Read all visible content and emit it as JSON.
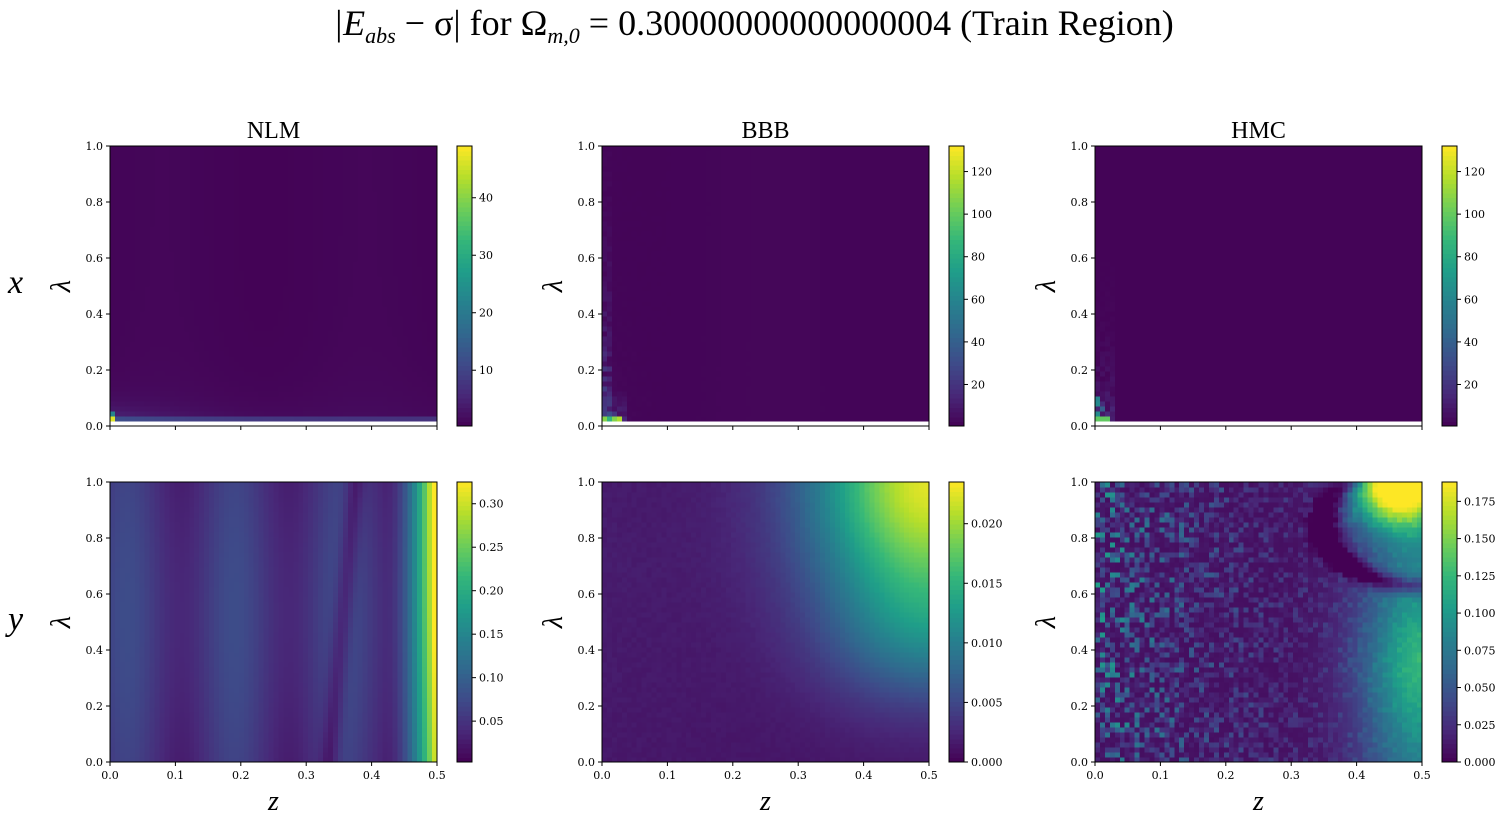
{
  "figure": {
    "title_parts": {
      "lhs_open": "|E",
      "lhs_sub": "abs",
      "lhs_mid": " − σ| for Ω",
      "lhs_sub2": "m,0",
      "rhs": " = 0.30000000000000004 (Train Region)"
    },
    "row_labels": [
      "x",
      "y"
    ],
    "colormap": "viridis",
    "viridis": [
      "#440154",
      "#482878",
      "#3e4a89",
      "#31688e",
      "#26828e",
      "#1f9e89",
      "#35b779",
      "#6ece58",
      "#b5de2b",
      "#fde725"
    ]
  },
  "chart_data": [
    {
      "type": "heatmap",
      "title": "NLM",
      "row": "x",
      "xlabel": "",
      "ylabel": "λ",
      "xlim": [
        0,
        0.5
      ],
      "ylim": [
        0,
        1
      ],
      "x_ticks": [
        0.0,
        0.1,
        0.2,
        0.3,
        0.4,
        0.5
      ],
      "y_ticks": [
        "0.0",
        "0.2",
        "0.4",
        "0.6",
        "0.8",
        "1.0"
      ],
      "x_tick_labels_shown": false,
      "colorbar": {
        "min": 0.3,
        "max": 49,
        "ticks": [
          "10",
          "20",
          "30",
          "40"
        ],
        "tick_values": [
          10,
          20,
          30,
          40
        ]
      },
      "pattern": "nlm_x"
    },
    {
      "type": "heatmap",
      "title": "BBB",
      "row": "x",
      "xlabel": "",
      "ylabel": "λ",
      "xlim": [
        0,
        0.5
      ],
      "ylim": [
        0,
        1
      ],
      "x_ticks": [
        0.0,
        0.1,
        0.2,
        0.3,
        0.4,
        0.5
      ],
      "y_ticks": [
        "0.0",
        "0.2",
        "0.4",
        "0.6",
        "0.8",
        "1.0"
      ],
      "x_tick_labels_shown": false,
      "colorbar": {
        "min": 0.5,
        "max": 132,
        "ticks": [
          "20",
          "40",
          "60",
          "80",
          "100",
          "120"
        ],
        "tick_values": [
          20,
          40,
          60,
          80,
          100,
          120
        ]
      },
      "pattern": "bbb_x"
    },
    {
      "type": "heatmap",
      "title": "HMC",
      "row": "x",
      "xlabel": "",
      "ylabel": "λ",
      "xlim": [
        0,
        0.5
      ],
      "ylim": [
        0,
        1
      ],
      "x_ticks": [
        0.0,
        0.1,
        0.2,
        0.3,
        0.4,
        0.5
      ],
      "y_ticks": [
        "0.0",
        "0.2",
        "0.4",
        "0.6",
        "0.8",
        "1.0"
      ],
      "x_tick_labels_shown": false,
      "colorbar": {
        "min": 0.5,
        "max": 132,
        "ticks": [
          "20",
          "40",
          "60",
          "80",
          "100",
          "120"
        ],
        "tick_values": [
          20,
          40,
          60,
          80,
          100,
          120
        ]
      },
      "pattern": "hmc_x"
    },
    {
      "type": "heatmap",
      "title": "",
      "row": "y",
      "xlabel": "z",
      "ylabel": "λ",
      "xlim": [
        0,
        0.5
      ],
      "ylim": [
        0,
        1
      ],
      "x_ticks": [
        "0.0",
        "0.1",
        "0.2",
        "0.3",
        "0.4",
        "0.5"
      ],
      "y_ticks": [
        "0.0",
        "0.2",
        "0.4",
        "0.6",
        "0.8",
        "1.0"
      ],
      "x_tick_labels_shown": true,
      "colorbar": {
        "min": 0.003,
        "max": 0.325,
        "ticks": [
          "0.05",
          "0.10",
          "0.15",
          "0.20",
          "0.25",
          "0.30"
        ],
        "tick_values": [
          0.05,
          0.1,
          0.15,
          0.2,
          0.25,
          0.3
        ]
      },
      "pattern": "nlm_y"
    },
    {
      "type": "heatmap",
      "title": "",
      "row": "y",
      "xlabel": "z",
      "ylabel": "λ",
      "xlim": [
        0,
        0.5
      ],
      "ylim": [
        0,
        1
      ],
      "x_ticks": [
        "0.0",
        "0.1",
        "0.2",
        "0.3",
        "0.4",
        "0.5"
      ],
      "y_ticks": [
        "0.0",
        "0.2",
        "0.4",
        "0.6",
        "0.8",
        "1.0"
      ],
      "x_tick_labels_shown": true,
      "colorbar": {
        "min": 0.0,
        "max": 0.0235,
        "ticks": [
          "0.000",
          "0.005",
          "0.010",
          "0.015",
          "0.020"
        ],
        "tick_values": [
          0.0,
          0.005,
          0.01,
          0.015,
          0.02
        ]
      },
      "pattern": "bbb_y"
    },
    {
      "type": "heatmap",
      "title": "",
      "row": "y",
      "xlabel": "z",
      "ylabel": "λ",
      "xlim": [
        0,
        0.5
      ],
      "ylim": [
        0,
        1
      ],
      "x_ticks": [
        "0.0",
        "0.1",
        "0.2",
        "0.3",
        "0.4",
        "0.5"
      ],
      "y_ticks": [
        "0.0",
        "0.2",
        "0.4",
        "0.6",
        "0.8",
        "1.0"
      ],
      "x_tick_labels_shown": true,
      "colorbar": {
        "min": 0.0,
        "max": 0.188,
        "ticks": [
          "0.000",
          "0.025",
          "0.050",
          "0.075",
          "0.100",
          "0.125",
          "0.150",
          "0.175"
        ],
        "tick_values": [
          0.0,
          0.025,
          0.05,
          0.075,
          0.1,
          0.125,
          0.15,
          0.175
        ]
      },
      "pattern": "hmc_y"
    }
  ]
}
